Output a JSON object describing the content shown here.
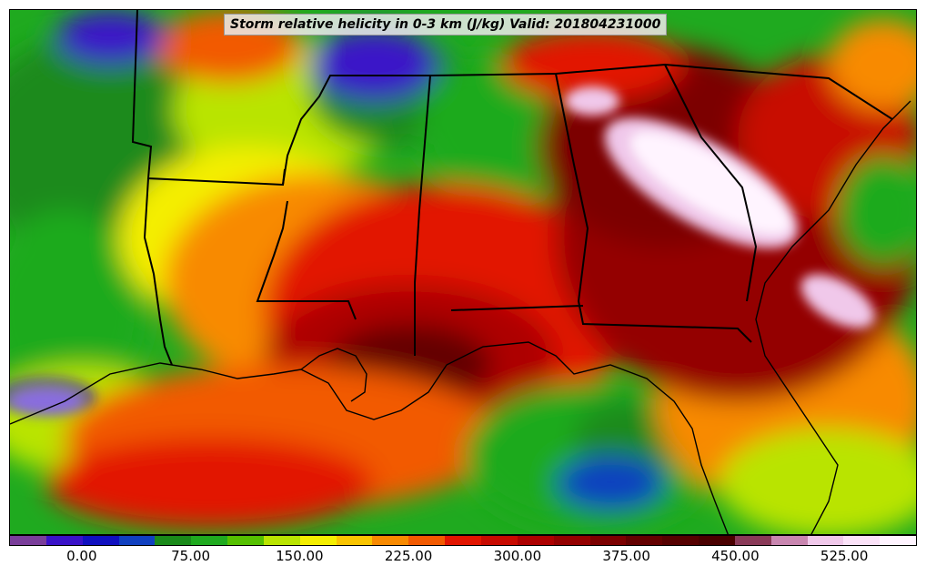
{
  "title": "Storm relative helicity in 0-3 km (J/kg) Valid: 201804231000",
  "colorbar": {
    "unit": "J/kg",
    "colors": [
      "#7a3d9a",
      "#3a12c8",
      "#1010c0",
      "#1040c0",
      "#1a8a1a",
      "#1faa1f",
      "#55c000",
      "#b9e400",
      "#f4ee00",
      "#f9c400",
      "#f88a00",
      "#f25a00",
      "#e21500",
      "#c80a00",
      "#ad0000",
      "#940000",
      "#7c0000",
      "#640000",
      "#560000",
      "#4a0000",
      "#8a3a58",
      "#c986b0",
      "#f0c8ea",
      "#fbe2f8",
      "#fff4ff"
    ],
    "bin_edges": [
      -50,
      -25,
      0,
      25,
      50,
      75,
      100,
      125,
      150,
      175,
      200,
      225,
      250,
      275,
      300,
      325,
      350,
      375,
      400,
      425,
      450,
      475,
      500,
      525,
      550,
      575
    ],
    "tick_labels": [
      "0.00",
      "75.00",
      "150.00",
      "225.00",
      "300.00",
      "375.00",
      "450.00",
      "525.00"
    ],
    "tick_values": [
      0,
      75,
      150,
      225,
      300,
      375,
      450,
      525
    ]
  }
}
